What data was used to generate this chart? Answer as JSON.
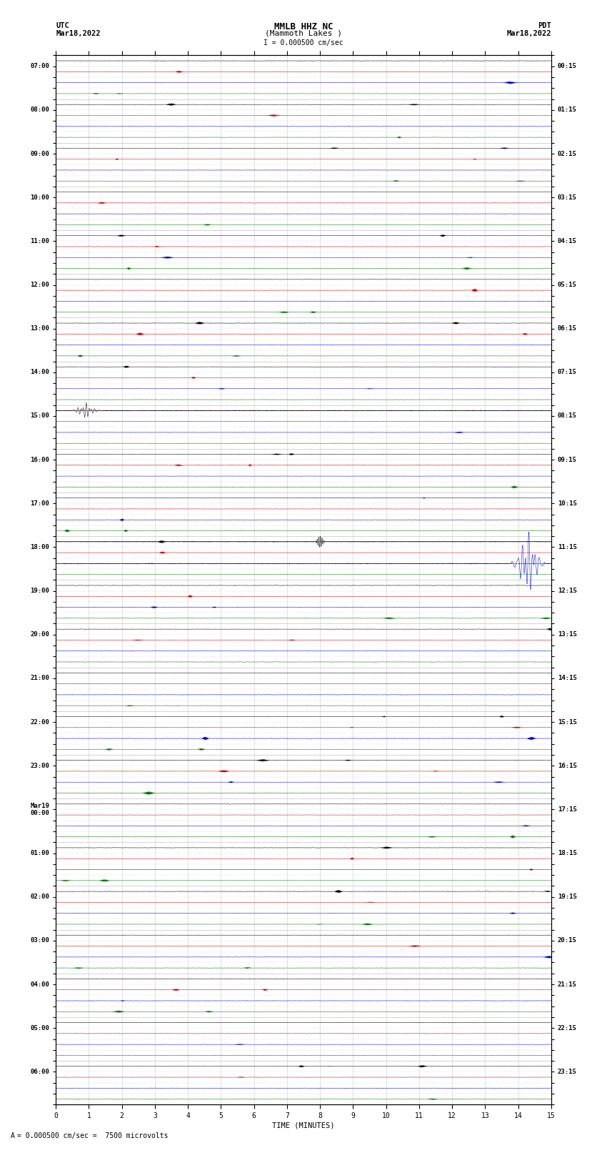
{
  "title_line1": "MMLB HHZ NC",
  "title_line2": "(Mammoth Lakes )",
  "scale_label": "I = 0.000500 cm/sec",
  "left_header1": "UTC",
  "left_header2": "Mar18,2022",
  "right_header1": "PDT",
  "right_header2": "Mar18,2022",
  "bottom_label": "= 0.000500 cm/sec =  7500 microvolts",
  "xlabel": "TIME (MINUTES)",
  "xmin": 0,
  "xmax": 15,
  "xticks": [
    0,
    1,
    2,
    3,
    4,
    5,
    6,
    7,
    8,
    9,
    10,
    11,
    12,
    13,
    14,
    15
  ],
  "background_color": "#ffffff",
  "trace_colors": [
    "#000000",
    "#cc0000",
    "#0000cc",
    "#007700"
  ],
  "num_rows": 96,
  "fig_width": 8.5,
  "fig_height": 16.13,
  "base_noise": 0.012,
  "utc_times_full": [
    "07:00",
    "",
    "",
    "",
    "08:00",
    "",
    "",
    "",
    "09:00",
    "",
    "",
    "",
    "10:00",
    "",
    "",
    "",
    "11:00",
    "",
    "",
    "",
    "12:00",
    "",
    "",
    "",
    "13:00",
    "",
    "",
    "",
    "14:00",
    "",
    "",
    "",
    "15:00",
    "",
    "",
    "",
    "16:00",
    "",
    "",
    "",
    "17:00",
    "",
    "",
    "",
    "18:00",
    "",
    "",
    "",
    "19:00",
    "",
    "",
    "",
    "20:00",
    "",
    "",
    "",
    "21:00",
    "",
    "",
    "",
    "22:00",
    "",
    "",
    "",
    "23:00",
    "",
    "",
    "",
    "Mar19\n00:00",
    "",
    "",
    "",
    "01:00",
    "",
    "",
    "",
    "02:00",
    "",
    "",
    "",
    "03:00",
    "",
    "",
    "",
    "04:00",
    "",
    "",
    "",
    "05:00",
    "",
    "",
    "",
    "06:00",
    "",
    "",
    ""
  ],
  "pdt_times_full": [
    "00:15",
    "",
    "",
    "",
    "01:15",
    "",
    "",
    "",
    "02:15",
    "",
    "",
    "",
    "03:15",
    "",
    "",
    "",
    "04:15",
    "",
    "",
    "",
    "05:15",
    "",
    "",
    "",
    "06:15",
    "",
    "",
    "",
    "07:15",
    "",
    "",
    "",
    "08:15",
    "",
    "",
    "",
    "09:15",
    "",
    "",
    "",
    "10:15",
    "",
    "",
    "",
    "11:15",
    "",
    "",
    "",
    "12:15",
    "",
    "",
    "",
    "13:15",
    "",
    "",
    "",
    "14:15",
    "",
    "",
    "",
    "15:15",
    "",
    "",
    "",
    "16:15",
    "",
    "",
    "",
    "17:15",
    "",
    "",
    "",
    "18:15",
    "",
    "",
    "",
    "19:15",
    "",
    "",
    "",
    "20:15",
    "",
    "",
    "",
    "21:15",
    "",
    "",
    "",
    "22:15",
    "",
    "",
    "",
    "23:15",
    "",
    "",
    ""
  ]
}
